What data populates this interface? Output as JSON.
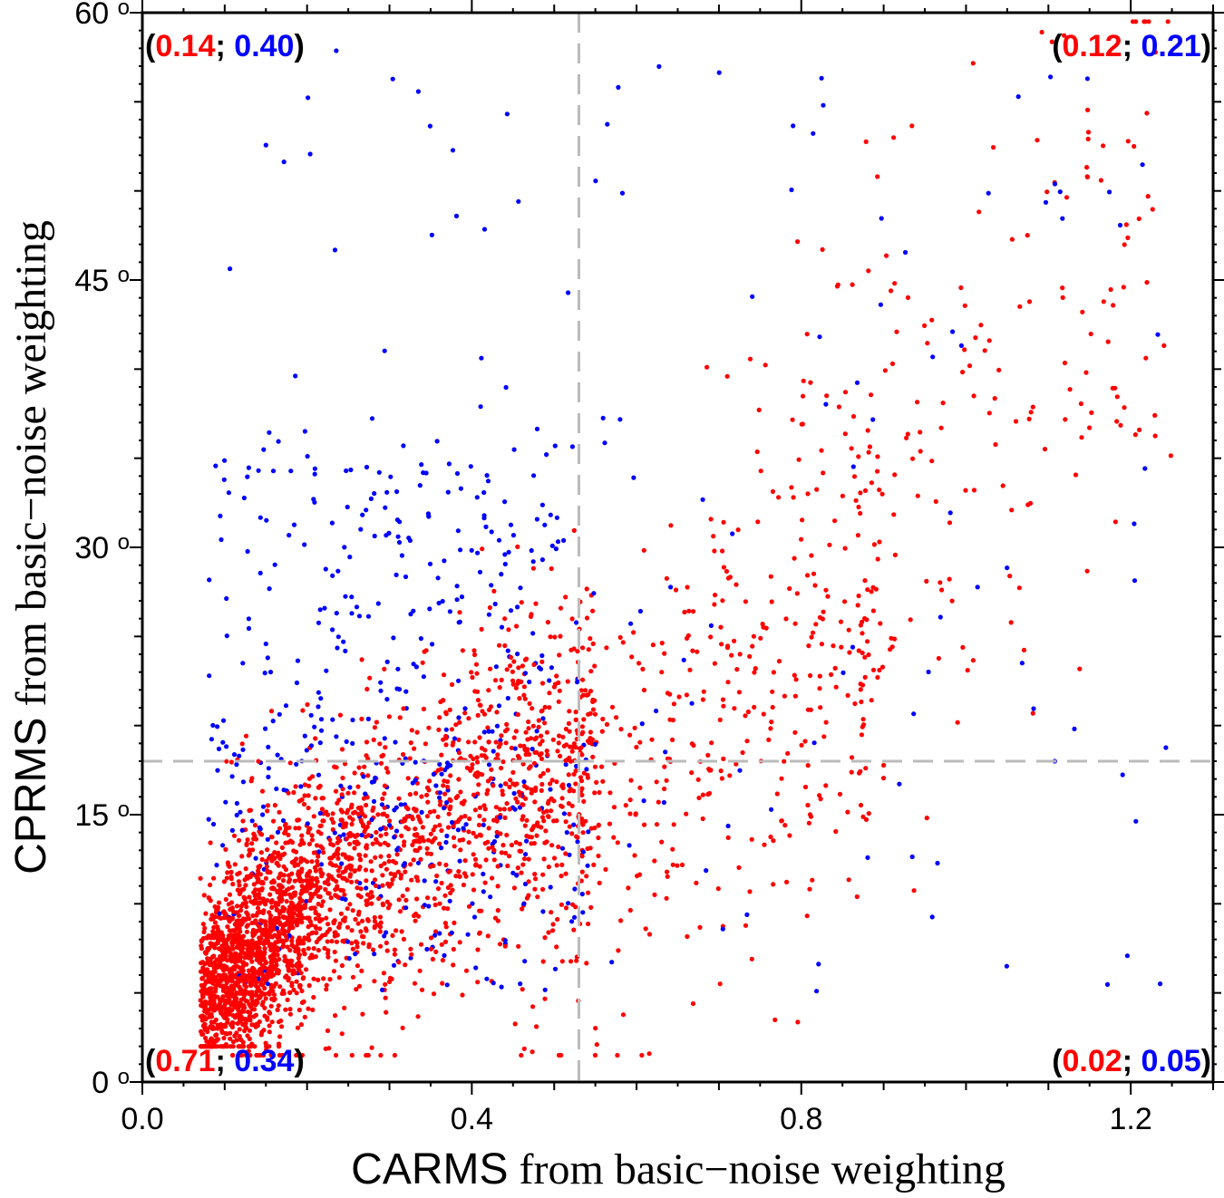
{
  "chart_data": {
    "type": "scatter",
    "title": "",
    "xlabel": {
      "part1": "CARMS",
      "part2": " from basic−noise weighting"
    },
    "ylabel": {
      "part1": "CPRMS",
      "part2": " from basic−noise weighting"
    },
    "xlim": [
      0,
      1.3
    ],
    "ylim": [
      0,
      60
    ],
    "x_ticks": [
      {
        "value": 0.0,
        "label": "0.0"
      },
      {
        "value": 0.4,
        "label": "0.4"
      },
      {
        "value": 0.8,
        "label": "0.8"
      },
      {
        "value": 1.2,
        "label": "1.2"
      }
    ],
    "y_ticks": [
      {
        "value": 0,
        "label": "0",
        "unit": "o"
      },
      {
        "value": 15,
        "label": "15",
        "unit": "o"
      },
      {
        "value": 30,
        "label": "30",
        "unit": "o"
      },
      {
        "value": 45,
        "label": "45",
        "unit": "o"
      },
      {
        "value": 60,
        "label": "60",
        "unit": "o"
      }
    ],
    "reference_lines": {
      "x": 0.53,
      "y": 18,
      "style": "dashed",
      "color": "#bbbbbb"
    },
    "series": [
      {
        "color": "#ff0000",
        "approx_count": 3200
      },
      {
        "color": "#0000ff",
        "approx_count": 600
      }
    ],
    "quadrant_labels": [
      {
        "position": "top-left",
        "red": "0.14",
        "blue": "0.40"
      },
      {
        "position": "top-right",
        "red": "0.12",
        "blue": "0.21"
      },
      {
        "position": "bottom-left",
        "red": "0.71",
        "blue": "0.34"
      },
      {
        "position": "bottom-right",
        "red": "0.02",
        "blue": "0.05"
      }
    ],
    "grid": false,
    "legend": "none"
  },
  "colors": {
    "red": "#ff0000",
    "blue": "#0000ff",
    "black": "#000000",
    "reference": "#bbbbbb"
  }
}
